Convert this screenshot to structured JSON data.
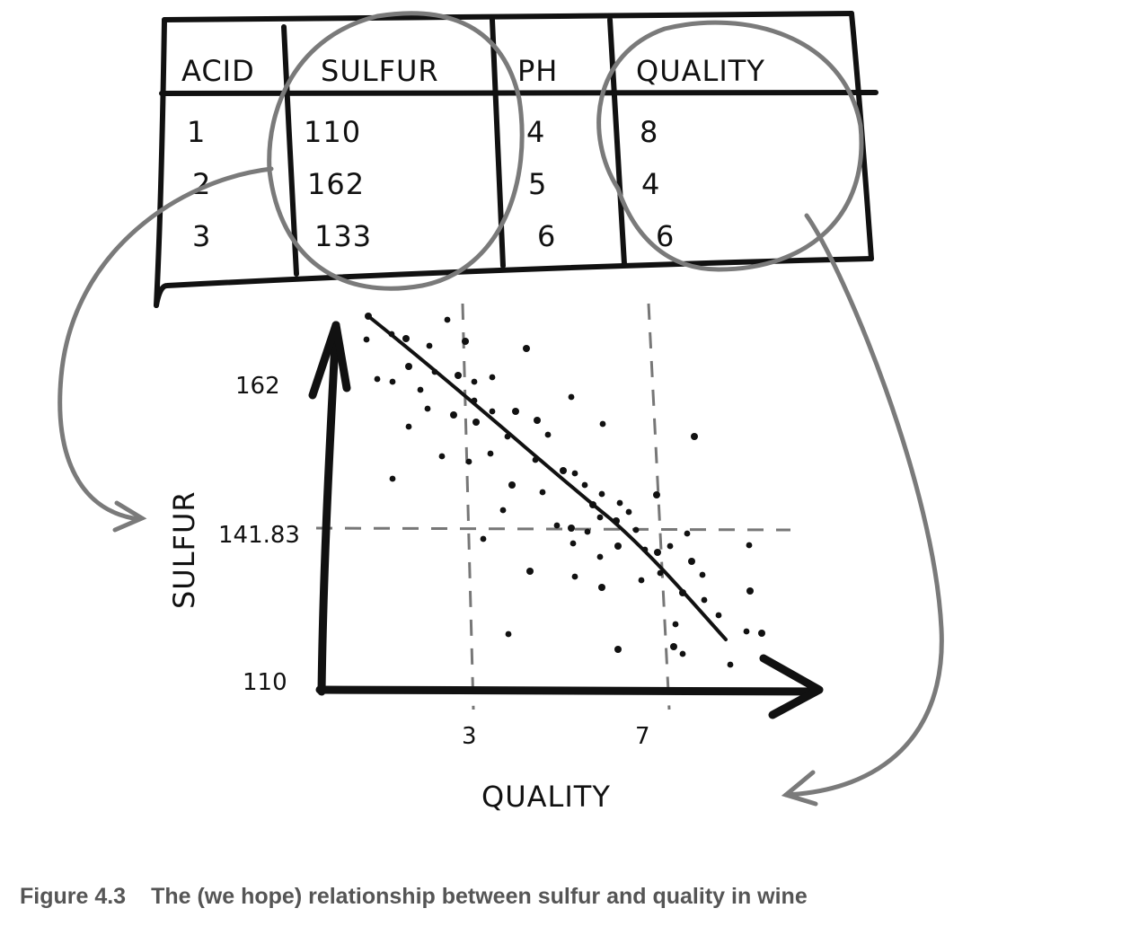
{
  "table": {
    "headers": [
      "ACID",
      "SULFUR",
      "PH",
      "QUALITY"
    ],
    "rows": [
      [
        "1",
        "110",
        "4",
        "8"
      ],
      [
        "2",
        "162",
        "5",
        "4"
      ],
      [
        "3",
        "133",
        "6",
        "6"
      ]
    ]
  },
  "chart_data": {
    "type": "scatter",
    "xlabel": "QUALITY",
    "ylabel": "SULFUR",
    "x_ticks": [
      "3",
      "7"
    ],
    "y_ticks": [
      "162",
      "141.83",
      "110"
    ],
    "trend": "negative linear (downward-sloping best-fit line)",
    "reference_lines": {
      "x": [
        "3",
        "7"
      ],
      "y": [
        "141.83"
      ]
    }
  },
  "caption": {
    "number": "Figure 4.3",
    "text": "The (we hope) relationship between sulfur and quality in wine"
  }
}
